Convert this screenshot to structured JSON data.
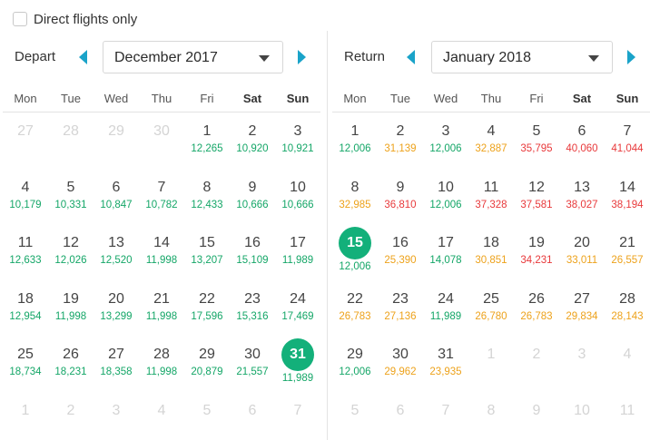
{
  "direct_flights": {
    "label": "Direct flights only",
    "checked": false
  },
  "colors": {
    "green": "#14a667",
    "orange": "#eda21b",
    "red": "#e8393b",
    "selected": "#13b07a",
    "arrow": "#1aa3c9"
  },
  "depart": {
    "label": "Depart",
    "month": "December 2017",
    "weekdays": [
      "Mon",
      "Tue",
      "Wed",
      "Thu",
      "Fri",
      "Sat",
      "Sun"
    ],
    "weeks": [
      [
        {
          "d": "27",
          "dim": true
        },
        {
          "d": "28",
          "dim": true
        },
        {
          "d": "29",
          "dim": true
        },
        {
          "d": "30",
          "dim": true
        },
        {
          "d": "1",
          "p": "12,265",
          "c": "green"
        },
        {
          "d": "2",
          "p": "10,920",
          "c": "green"
        },
        {
          "d": "3",
          "p": "10,921",
          "c": "green"
        }
      ],
      [
        {
          "d": "4",
          "p": "10,179",
          "c": "green"
        },
        {
          "d": "5",
          "p": "10,331",
          "c": "green"
        },
        {
          "d": "6",
          "p": "10,847",
          "c": "green"
        },
        {
          "d": "7",
          "p": "10,782",
          "c": "green"
        },
        {
          "d": "8",
          "p": "12,433",
          "c": "green"
        },
        {
          "d": "9",
          "p": "10,666",
          "c": "green"
        },
        {
          "d": "10",
          "p": "10,666",
          "c": "green"
        }
      ],
      [
        {
          "d": "11",
          "p": "12,633",
          "c": "green"
        },
        {
          "d": "12",
          "p": "12,026",
          "c": "green"
        },
        {
          "d": "13",
          "p": "12,520",
          "c": "green"
        },
        {
          "d": "14",
          "p": "11,998",
          "c": "green"
        },
        {
          "d": "15",
          "p": "13,207",
          "c": "green"
        },
        {
          "d": "16",
          "p": "15,109",
          "c": "green"
        },
        {
          "d": "17",
          "p": "11,989",
          "c": "green"
        }
      ],
      [
        {
          "d": "18",
          "p": "12,954",
          "c": "green"
        },
        {
          "d": "19",
          "p": "11,998",
          "c": "green"
        },
        {
          "d": "20",
          "p": "13,299",
          "c": "green"
        },
        {
          "d": "21",
          "p": "11,998",
          "c": "green"
        },
        {
          "d": "22",
          "p": "17,596",
          "c": "green"
        },
        {
          "d": "23",
          "p": "15,316",
          "c": "green"
        },
        {
          "d": "24",
          "p": "17,469",
          "c": "green"
        }
      ],
      [
        {
          "d": "25",
          "p": "18,734",
          "c": "green"
        },
        {
          "d": "26",
          "p": "18,231",
          "c": "green"
        },
        {
          "d": "27",
          "p": "18,358",
          "c": "green"
        },
        {
          "d": "28",
          "p": "11,998",
          "c": "green"
        },
        {
          "d": "29",
          "p": "20,879",
          "c": "green"
        },
        {
          "d": "30",
          "p": "21,557",
          "c": "green"
        },
        {
          "d": "31",
          "p": "11,989",
          "c": "green",
          "sel": true
        }
      ],
      [
        {
          "d": "1",
          "dim": true
        },
        {
          "d": "2",
          "dim": true
        },
        {
          "d": "3",
          "dim": true
        },
        {
          "d": "4",
          "dim": true
        },
        {
          "d": "5",
          "dim": true
        },
        {
          "d": "6",
          "dim": true
        },
        {
          "d": "7",
          "dim": true
        }
      ]
    ]
  },
  "return": {
    "label": "Return",
    "month": "January 2018",
    "weekdays": [
      "Mon",
      "Tue",
      "Wed",
      "Thu",
      "Fri",
      "Sat",
      "Sun"
    ],
    "weeks": [
      [
        {
          "d": "1",
          "p": "12,006",
          "c": "green"
        },
        {
          "d": "2",
          "p": "31,139",
          "c": "orange"
        },
        {
          "d": "3",
          "p": "12,006",
          "c": "green"
        },
        {
          "d": "4",
          "p": "32,887",
          "c": "orange"
        },
        {
          "d": "5",
          "p": "35,795",
          "c": "red"
        },
        {
          "d": "6",
          "p": "40,060",
          "c": "red"
        },
        {
          "d": "7",
          "p": "41,044",
          "c": "red"
        }
      ],
      [
        {
          "d": "8",
          "p": "32,985",
          "c": "orange"
        },
        {
          "d": "9",
          "p": "36,810",
          "c": "red"
        },
        {
          "d": "10",
          "p": "12,006",
          "c": "green"
        },
        {
          "d": "11",
          "p": "37,328",
          "c": "red"
        },
        {
          "d": "12",
          "p": "37,581",
          "c": "red"
        },
        {
          "d": "13",
          "p": "38,027",
          "c": "red"
        },
        {
          "d": "14",
          "p": "38,194",
          "c": "red"
        }
      ],
      [
        {
          "d": "15",
          "p": "12,006",
          "c": "green",
          "sel": true
        },
        {
          "d": "16",
          "p": "25,390",
          "c": "orange"
        },
        {
          "d": "17",
          "p": "14,078",
          "c": "green"
        },
        {
          "d": "18",
          "p": "30,851",
          "c": "orange"
        },
        {
          "d": "19",
          "p": "34,231",
          "c": "red"
        },
        {
          "d": "20",
          "p": "33,011",
          "c": "orange"
        },
        {
          "d": "21",
          "p": "26,557",
          "c": "orange"
        }
      ],
      [
        {
          "d": "22",
          "p": "26,783",
          "c": "orange"
        },
        {
          "d": "23",
          "p": "27,136",
          "c": "orange"
        },
        {
          "d": "24",
          "p": "11,989",
          "c": "green"
        },
        {
          "d": "25",
          "p": "26,780",
          "c": "orange"
        },
        {
          "d": "26",
          "p": "26,783",
          "c": "orange"
        },
        {
          "d": "27",
          "p": "29,834",
          "c": "orange"
        },
        {
          "d": "28",
          "p": "28,143",
          "c": "orange"
        }
      ],
      [
        {
          "d": "29",
          "p": "12,006",
          "c": "green"
        },
        {
          "d": "30",
          "p": "29,962",
          "c": "orange"
        },
        {
          "d": "31",
          "p": "23,935",
          "c": "orange"
        },
        {
          "d": "1",
          "dim": true
        },
        {
          "d": "2",
          "dim": true
        },
        {
          "d": "3",
          "dim": true
        },
        {
          "d": "4",
          "dim": true
        }
      ],
      [
        {
          "d": "5",
          "dim": true
        },
        {
          "d": "6",
          "dim": true
        },
        {
          "d": "7",
          "dim": true
        },
        {
          "d": "8",
          "dim": true
        },
        {
          "d": "9",
          "dim": true
        },
        {
          "d": "10",
          "dim": true
        },
        {
          "d": "11",
          "dim": true
        }
      ]
    ]
  }
}
